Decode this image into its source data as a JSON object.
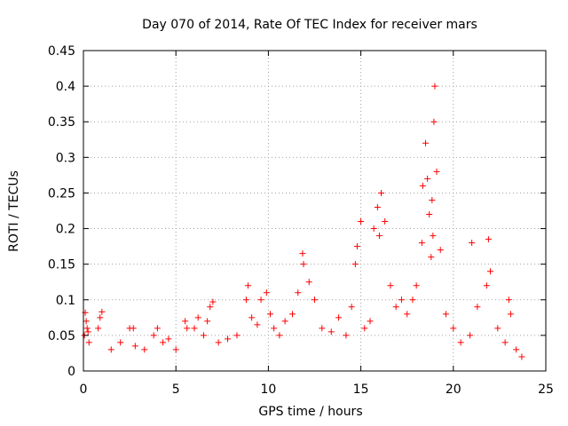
{
  "chart_data": {
    "type": "scatter",
    "title": "Day 070 of 2014, Rate Of TEC Index for receiver mars",
    "xlabel": "GPS time / hours",
    "ylabel": "ROTI / TECUs",
    "xlim": [
      0,
      25
    ],
    "ylim": [
      0,
      0.45
    ],
    "x_ticks": [
      0,
      5,
      10,
      15,
      20,
      25
    ],
    "x_tick_labels": [
      "0",
      "5",
      "10",
      "15",
      "20",
      "25"
    ],
    "y_ticks": [
      0,
      0.05,
      0.1,
      0.15,
      0.2,
      0.25,
      0.3,
      0.35,
      0.4,
      0.45
    ],
    "y_tick_labels": [
      "0",
      "0.05",
      "0.1",
      "0.15",
      "0.2",
      "0.25",
      "0.3",
      "0.35",
      "0.4",
      "0.45"
    ],
    "grid": true,
    "marker": "+",
    "series": [
      {
        "name": "ROTI",
        "color": "#ff0000",
        "x": [
          0.05,
          0.1,
          0.15,
          0.2,
          0.25,
          0.3,
          0.8,
          0.9,
          1.0,
          1.5,
          2.0,
          2.5,
          2.7,
          2.8,
          3.3,
          3.8,
          4.0,
          4.3,
          4.6,
          5.0,
          5.5,
          5.6,
          6.0,
          6.2,
          6.5,
          6.7,
          6.85,
          7.0,
          7.3,
          7.8,
          8.3,
          8.8,
          8.9,
          9.1,
          9.4,
          9.6,
          9.9,
          10.1,
          10.3,
          10.6,
          10.9,
          11.3,
          11.6,
          11.85,
          11.9,
          12.2,
          12.5,
          12.9,
          13.4,
          13.8,
          14.2,
          14.5,
          14.7,
          14.8,
          15.0,
          15.2,
          15.5,
          15.7,
          15.9,
          16.0,
          16.1,
          16.3,
          16.6,
          16.9,
          17.2,
          17.5,
          17.8,
          18.0,
          18.3,
          18.35,
          18.5,
          18.6,
          18.7,
          18.8,
          18.85,
          18.9,
          18.95,
          19.0,
          19.1,
          19.3,
          19.6,
          20.0,
          20.4,
          20.9,
          21.0,
          21.3,
          21.8,
          21.9,
          22.0,
          22.4,
          22.8,
          23.0,
          23.1,
          23.4,
          23.7
        ],
        "y": [
          0.05,
          0.082,
          0.07,
          0.06,
          0.055,
          0.04,
          0.06,
          0.075,
          0.083,
          0.03,
          0.04,
          0.06,
          0.06,
          0.035,
          0.03,
          0.05,
          0.06,
          0.04,
          0.045,
          0.03,
          0.07,
          0.06,
          0.06,
          0.075,
          0.05,
          0.07,
          0.09,
          0.097,
          0.04,
          0.045,
          0.05,
          0.1,
          0.12,
          0.075,
          0.065,
          0.1,
          0.11,
          0.08,
          0.06,
          0.05,
          0.07,
          0.08,
          0.11,
          0.165,
          0.15,
          0.125,
          0.1,
          0.06,
          0.055,
          0.075,
          0.05,
          0.09,
          0.15,
          0.175,
          0.21,
          0.06,
          0.07,
          0.2,
          0.23,
          0.19,
          0.25,
          0.21,
          0.12,
          0.09,
          0.1,
          0.08,
          0.1,
          0.12,
          0.18,
          0.26,
          0.32,
          0.27,
          0.22,
          0.16,
          0.24,
          0.19,
          0.35,
          0.4,
          0.28,
          0.17,
          0.08,
          0.06,
          0.04,
          0.05,
          0.18,
          0.09,
          0.12,
          0.185,
          0.14,
          0.06,
          0.04,
          0.1,
          0.08,
          0.03,
          0.02
        ]
      }
    ]
  }
}
